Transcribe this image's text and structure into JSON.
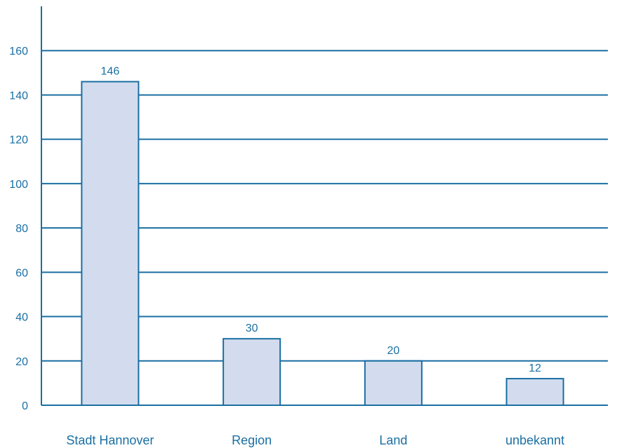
{
  "chart_data": {
    "type": "bar",
    "title": "",
    "xlabel": "",
    "ylabel": "",
    "categories": [
      "Stadt Hannover",
      "Region",
      "Land",
      "unbekannt"
    ],
    "values": [
      146,
      30,
      20,
      12
    ],
    "data_labels": [
      "146",
      "30",
      "20",
      "12"
    ],
    "ylim": [
      0,
      180
    ],
    "yticks": [
      0,
      20,
      40,
      60,
      80,
      100,
      120,
      140,
      160
    ],
    "ytick_labels": [
      "0",
      "20",
      "40",
      "60",
      "80",
      "100",
      "120",
      "140",
      "160"
    ],
    "grid": "horizontal",
    "legend": "none"
  },
  "colors": {
    "axis": "#1a6fa3",
    "grid": "#1a6fa3",
    "bar_fill": "#d3dcee",
    "bar_stroke": "#1a6fa3",
    "text": "#1a6fa3"
  }
}
